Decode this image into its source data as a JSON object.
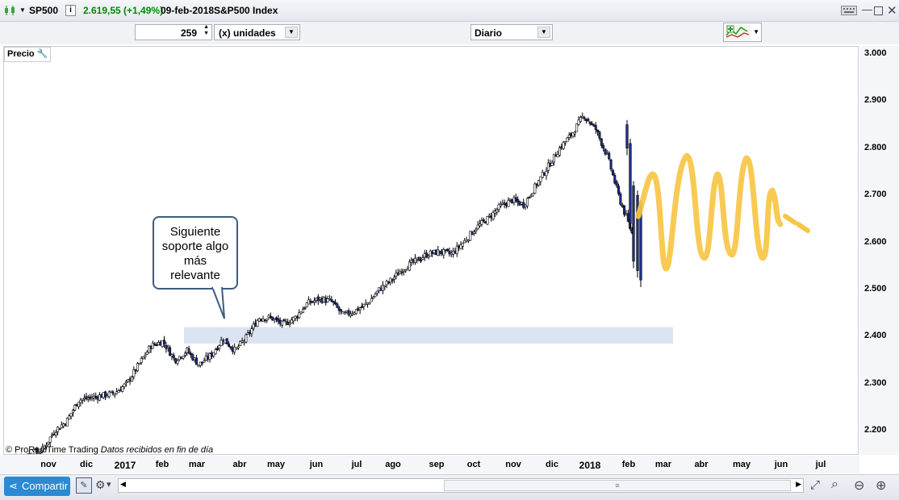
{
  "window": {
    "symbol": "SP500",
    "info_icon": "info-icon",
    "price_change": "2.619,55 (+1,49%)",
    "date": "09-feb-2018",
    "instrument": "S&P500 Index",
    "price_change_color": "#008a00"
  },
  "toolbar": {
    "units_value": "259",
    "units_label": "(x) unidades",
    "period": "Diario"
  },
  "panel": {
    "label": "Precio",
    "watermark_brand": "© ProRealTime Trading",
    "watermark_note": "Datos recibidos en fin de día"
  },
  "callout": {
    "line1": "Siguiente",
    "line2": "soporte algo",
    "line3": "más",
    "line4": "relevante"
  },
  "bottom": {
    "share_label": "Compartir"
  },
  "chart_data": {
    "type": "candlestick",
    "y_ticks": [
      "3.000",
      "2.900",
      "2.800",
      "2.700",
      "2.600",
      "2.500",
      "2.400",
      "2.300",
      "2.200"
    ],
    "y_values": [
      3000,
      2900,
      2800,
      2700,
      2600,
      2500,
      2400,
      2300,
      2200
    ],
    "x_ticks": [
      "nov",
      "dic",
      "2017",
      "feb",
      "mar",
      "abr",
      "may",
      "jun",
      "jul",
      "ago",
      "sep",
      "oct",
      "nov",
      "dic",
      "2018",
      "feb",
      "mar",
      "abr",
      "may",
      "jun",
      "jul"
    ],
    "support_zone": [
      2385,
      2420
    ],
    "close_path": [
      [
        0,
        2140
      ],
      [
        2,
        2150
      ],
      [
        3,
        2160
      ],
      [
        4,
        2200
      ],
      [
        5,
        2220
      ],
      [
        6,
        2265
      ],
      [
        7,
        2270
      ],
      [
        8,
        2275
      ],
      [
        9,
        2280
      ],
      [
        10,
        2300
      ],
      [
        11,
        2340
      ],
      [
        12,
        2380
      ],
      [
        13,
        2390
      ],
      [
        14,
        2350
      ],
      [
        15,
        2370
      ],
      [
        16,
        2340
      ],
      [
        17,
        2360
      ],
      [
        18,
        2395
      ],
      [
        19,
        2370
      ],
      [
        20,
        2400
      ],
      [
        21,
        2440
      ],
      [
        22,
        2440
      ],
      [
        23,
        2425
      ],
      [
        24,
        2440
      ],
      [
        25,
        2470
      ],
      [
        26,
        2480
      ],
      [
        27,
        2475
      ],
      [
        28,
        2445
      ],
      [
        29,
        2455
      ],
      [
        30,
        2470
      ],
      [
        31,
        2500
      ],
      [
        32,
        2520
      ],
      [
        33,
        2545
      ],
      [
        34,
        2560
      ],
      [
        35,
        2575
      ],
      [
        36,
        2580
      ],
      [
        37,
        2575
      ],
      [
        38,
        2600
      ],
      [
        39,
        2630
      ],
      [
        40,
        2650
      ],
      [
        41,
        2675
      ],
      [
        42,
        2690
      ],
      [
        43,
        2680
      ],
      [
        44,
        2720
      ],
      [
        45,
        2760
      ],
      [
        46,
        2800
      ],
      [
        47,
        2830
      ],
      [
        48,
        2870
      ],
      [
        49,
        2840
      ],
      [
        50,
        2780
      ],
      [
        51,
        2690
      ],
      [
        52,
        2620
      ]
    ],
    "projection_color": "#f7c644",
    "support_color": "#dbe4f3"
  }
}
